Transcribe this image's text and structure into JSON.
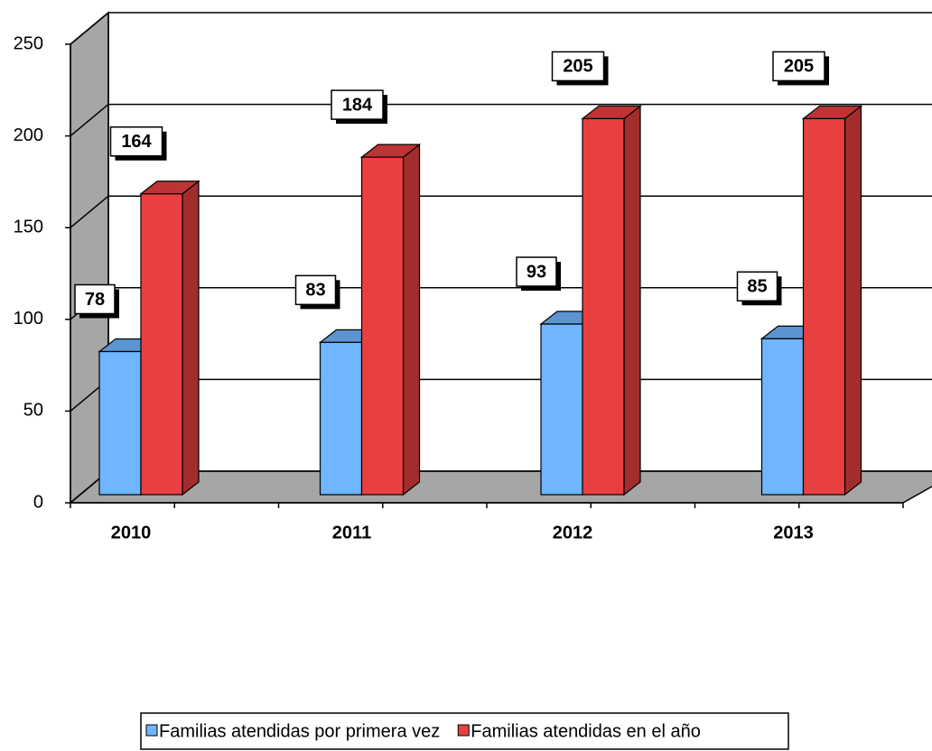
{
  "chart_data": {
    "type": "bar3d",
    "categories": [
      "2010",
      "2011",
      "2012",
      "2013"
    ],
    "series": [
      {
        "name": "Familias atendidas por primera vez",
        "color": "#6fb5ff",
        "values": [
          78,
          83,
          93,
          85
        ]
      },
      {
        "name": "Familias atendidas en el año",
        "color": "#e84040",
        "values": [
          164,
          184,
          205,
          205
        ]
      }
    ],
    "ylim": [
      0,
      250
    ],
    "yticks": [
      0,
      50,
      100,
      150,
      200,
      250
    ],
    "grid": true,
    "legend": "bottom"
  }
}
